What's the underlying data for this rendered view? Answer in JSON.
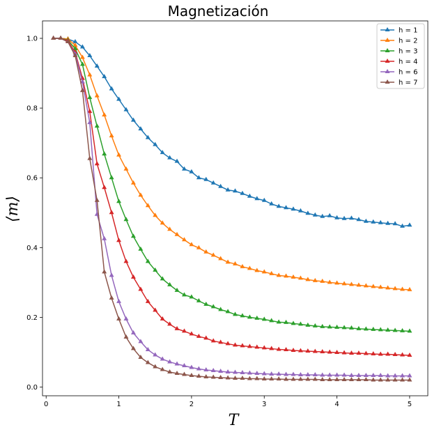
{
  "chart_data": {
    "type": "line",
    "title": "Magnetización",
    "xlabel": "T",
    "ylabel": "⟨m⟩",
    "xlim": [
      -0.05,
      5.25
    ],
    "ylim": [
      -0.025,
      1.05
    ],
    "xticks": [
      0,
      1,
      2,
      3,
      4,
      5
    ],
    "yticks": [
      0.0,
      0.2,
      0.4,
      0.6,
      0.8,
      1.0
    ],
    "xtick_labels": [
      "0",
      "1",
      "2",
      "3",
      "4",
      "5"
    ],
    "ytick_labels": [
      "0.0",
      "0.2",
      "0.4",
      "0.6",
      "0.8",
      "1.0"
    ],
    "marker": "triangle-up",
    "grid": false,
    "legend_position": "top-right",
    "x": [
      0.1,
      0.2,
      0.3,
      0.4,
      0.5,
      0.6,
      0.7,
      0.8,
      0.9,
      1.0,
      1.1,
      1.2,
      1.3,
      1.4,
      1.5,
      1.6,
      1.7,
      1.8,
      1.9,
      2.0,
      2.1,
      2.2,
      2.3,
      2.4,
      2.5,
      2.6,
      2.7,
      2.8,
      2.9,
      3.0,
      3.1,
      3.2,
      3.3,
      3.4,
      3.5,
      3.6,
      3.7,
      3.8,
      3.9,
      4.0,
      4.1,
      4.2,
      4.3,
      4.4,
      4.5,
      4.6,
      4.7,
      4.8,
      4.9,
      5.0
    ],
    "series": [
      {
        "name": "h = 1",
        "color": "#1f77b4",
        "values": [
          1.0,
          1.0,
          0.998,
          0.99,
          0.975,
          0.95,
          0.92,
          0.89,
          0.855,
          0.825,
          0.795,
          0.765,
          0.74,
          0.715,
          0.695,
          0.672,
          0.657,
          0.647,
          0.625,
          0.617,
          0.6,
          0.595,
          0.585,
          0.575,
          0.565,
          0.562,
          0.555,
          0.547,
          0.54,
          0.535,
          0.525,
          0.518,
          0.514,
          0.51,
          0.505,
          0.498,
          0.493,
          0.489,
          0.491,
          0.485,
          0.483,
          0.484,
          0.48,
          0.475,
          0.473,
          0.471,
          0.469,
          0.468,
          0.461,
          0.464
        ]
      },
      {
        "name": "h = 2",
        "color": "#ff7f0e",
        "values": [
          1.0,
          1.0,
          0.998,
          0.98,
          0.945,
          0.895,
          0.835,
          0.78,
          0.72,
          0.665,
          0.625,
          0.585,
          0.55,
          0.52,
          0.492,
          0.47,
          0.452,
          0.437,
          0.422,
          0.408,
          0.399,
          0.387,
          0.378,
          0.368,
          0.358,
          0.353,
          0.345,
          0.34,
          0.334,
          0.33,
          0.325,
          0.32,
          0.318,
          0.315,
          0.312,
          0.308,
          0.305,
          0.303,
          0.3,
          0.298,
          0.296,
          0.294,
          0.292,
          0.29,
          0.288,
          0.286,
          0.284,
          0.282,
          0.28,
          0.279
        ]
      },
      {
        "name": "h = 3",
        "color": "#2ca02c",
        "values": [
          1.0,
          1.0,
          0.995,
          0.97,
          0.925,
          0.83,
          0.748,
          0.668,
          0.6,
          0.532,
          0.48,
          0.432,
          0.395,
          0.36,
          0.335,
          0.31,
          0.293,
          0.277,
          0.264,
          0.258,
          0.247,
          0.237,
          0.23,
          0.222,
          0.216,
          0.208,
          0.204,
          0.2,
          0.197,
          0.194,
          0.19,
          0.186,
          0.185,
          0.182,
          0.18,
          0.177,
          0.175,
          0.173,
          0.172,
          0.171,
          0.17,
          0.169,
          0.167,
          0.166,
          0.165,
          0.164,
          0.163,
          0.162,
          0.161,
          0.16
        ]
      },
      {
        "name": "h = 4",
        "color": "#d62728",
        "values": [
          1.0,
          1.0,
          0.993,
          0.96,
          0.885,
          0.79,
          0.64,
          0.572,
          0.5,
          0.42,
          0.36,
          0.315,
          0.28,
          0.245,
          0.22,
          0.195,
          0.18,
          0.167,
          0.16,
          0.152,
          0.145,
          0.14,
          0.132,
          0.128,
          0.124,
          0.12,
          0.118,
          0.116,
          0.114,
          0.112,
          0.11,
          0.108,
          0.107,
          0.105,
          0.104,
          0.103,
          0.102,
          0.101,
          0.1,
          0.099,
          0.098,
          0.097,
          0.097,
          0.096,
          0.095,
          0.094,
          0.094,
          0.093,
          0.092,
          0.091
        ]
      },
      {
        "name": "h = 6",
        "color": "#9467bd",
        "values": [
          1.0,
          1.0,
          0.99,
          0.955,
          0.875,
          0.758,
          0.495,
          0.425,
          0.32,
          0.245,
          0.195,
          0.155,
          0.13,
          0.107,
          0.092,
          0.08,
          0.072,
          0.066,
          0.061,
          0.056,
          0.052,
          0.049,
          0.047,
          0.045,
          0.043,
          0.042,
          0.041,
          0.04,
          0.039,
          0.038,
          0.037,
          0.037,
          0.036,
          0.036,
          0.035,
          0.035,
          0.035,
          0.034,
          0.034,
          0.034,
          0.034,
          0.033,
          0.033,
          0.033,
          0.033,
          0.033,
          0.032,
          0.032,
          0.032,
          0.032
        ]
      },
      {
        "name": "h = 7",
        "color": "#8c564b",
        "values": [
          1.0,
          1.0,
          0.99,
          0.95,
          0.85,
          0.655,
          0.535,
          0.33,
          0.255,
          0.195,
          0.143,
          0.11,
          0.085,
          0.07,
          0.058,
          0.05,
          0.043,
          0.039,
          0.036,
          0.033,
          0.031,
          0.029,
          0.028,
          0.027,
          0.026,
          0.025,
          0.025,
          0.024,
          0.024,
          0.023,
          0.023,
          0.023,
          0.022,
          0.022,
          0.022,
          0.022,
          0.022,
          0.021,
          0.021,
          0.021,
          0.021,
          0.021,
          0.021,
          0.021,
          0.02,
          0.02,
          0.02,
          0.02,
          0.02,
          0.02
        ]
      }
    ]
  }
}
